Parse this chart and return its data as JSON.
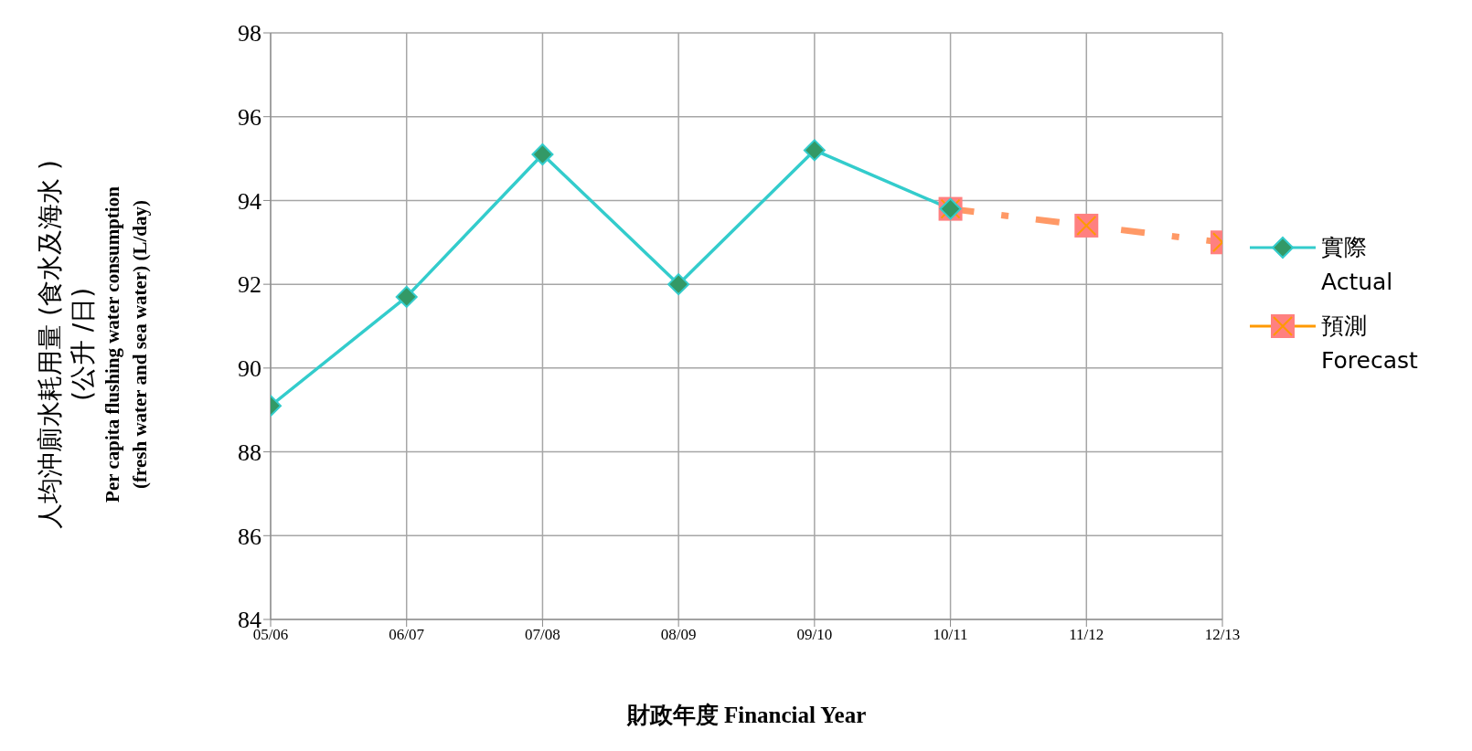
{
  "chart_data": {
    "type": "line",
    "xlabel": "財政年度  Financial Year",
    "ylabel": "人均沖廁水耗用量  (食水及海水 )\n(公升 /日)\nPer capita flushing water consumption\n(fresh water and sea water) (L/day)",
    "categories": [
      "05/06",
      "06/07",
      "07/08",
      "08/09",
      "09/10",
      "10/11",
      "11/12",
      "12/13"
    ],
    "series": [
      {
        "name": "預測\nForecast",
        "color": "#ff9966",
        "marker": "square",
        "line_style": "dashed",
        "values": [
          null,
          null,
          null,
          null,
          null,
          93.8,
          93.4,
          93.0
        ]
      },
      {
        "name": "實際\nActual",
        "color": "#33cccc",
        "marker": "diamond",
        "line_style": "solid",
        "values": [
          89.1,
          91.7,
          95.1,
          92.0,
          95.2,
          93.8,
          null,
          null
        ]
      }
    ],
    "ylim": [
      84,
      98
    ],
    "yticks": [
      84,
      86,
      88,
      90,
      92,
      94,
      96,
      98
    ],
    "grid": true,
    "legend": "right"
  }
}
